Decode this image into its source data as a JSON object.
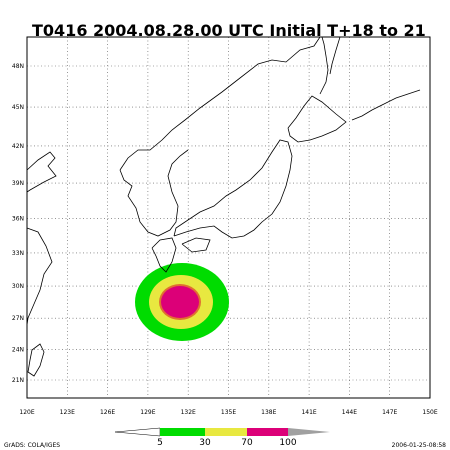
{
  "title": "T0416  2004.08.28.00 UTC Initial T+18 to 21",
  "lat_labels": [
    {
      "value": 48,
      "label": "48N"
    },
    {
      "value": 45,
      "label": "45N"
    },
    {
      "value": 42,
      "label": "42N"
    },
    {
      "value": 39,
      "label": "39N"
    },
    {
      "value": 36,
      "label": "36N"
    },
    {
      "value": 33,
      "label": "33N"
    },
    {
      "value": 30,
      "label": "30N"
    },
    {
      "value": 27,
      "label": "27N"
    },
    {
      "value": 24,
      "label": "24N"
    },
    {
      "value": 21,
      "label": "21N"
    }
  ],
  "lon_labels": [
    {
      "value": 120,
      "label": "120E"
    },
    {
      "value": 123,
      "label": "123E"
    },
    {
      "value": 126,
      "label": "126E"
    },
    {
      "value": 129,
      "label": "129E"
    },
    {
      "value": 132,
      "label": "132E"
    },
    {
      "value": 135,
      "label": "135E"
    },
    {
      "value": 138,
      "label": "138E"
    },
    {
      "value": 141,
      "label": "141E"
    },
    {
      "value": 144,
      "label": "144E"
    },
    {
      "value": 147,
      "label": "147E"
    },
    {
      "value": 150,
      "label": "150E"
    }
  ],
  "colorbar_labels": [
    5,
    30,
    70,
    100
  ],
  "footer_left": "GrADS: COLA/IGES",
  "footer_right": "2006-01-25-08:58"
}
